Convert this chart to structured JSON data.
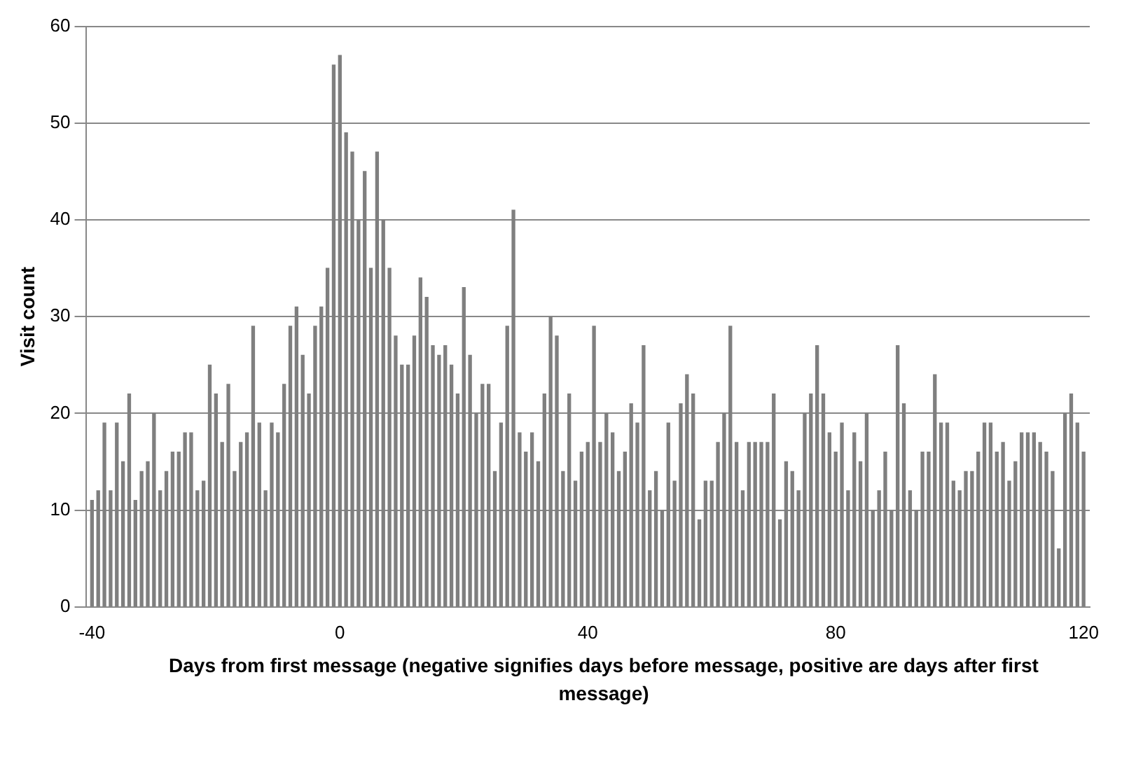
{
  "chart_data": {
    "type": "bar",
    "xlabel": "Days from first message (negative signifies days before message, positive are days after first message)",
    "ylabel": "Visit count",
    "color": "#7f7f7f",
    "xlim": [
      -41,
      121
    ],
    "xticks": [
      -40,
      0,
      40,
      80,
      120
    ],
    "ylim": [
      0,
      60
    ],
    "yticks": [
      0,
      10,
      20,
      30,
      40,
      50,
      60
    ],
    "grid": "y",
    "x": [
      -40,
      -39,
      -38,
      -37,
      -36,
      -35,
      -34,
      -33,
      -32,
      -31,
      -30,
      -29,
      -28,
      -27,
      -26,
      -25,
      -24,
      -23,
      -22,
      -21,
      -20,
      -19,
      -18,
      -17,
      -16,
      -15,
      -14,
      -13,
      -12,
      -11,
      -10,
      -9,
      -8,
      -7,
      -6,
      -5,
      -4,
      -3,
      -2,
      -1,
      0,
      1,
      2,
      3,
      4,
      5,
      6,
      7,
      8,
      9,
      10,
      11,
      12,
      13,
      14,
      15,
      16,
      17,
      18,
      19,
      20,
      21,
      22,
      23,
      24,
      25,
      26,
      27,
      28,
      29,
      30,
      31,
      32,
      33,
      34,
      35,
      36,
      37,
      38,
      39,
      40,
      41,
      42,
      43,
      44,
      45,
      46,
      47,
      48,
      49,
      50,
      51,
      52,
      53,
      54,
      55,
      56,
      57,
      58,
      59,
      60,
      61,
      62,
      63,
      64,
      65,
      66,
      67,
      68,
      69,
      70,
      71,
      72,
      73,
      74,
      75,
      76,
      77,
      78,
      79,
      80,
      81,
      82,
      83,
      84,
      85,
      86,
      87,
      88,
      89,
      90,
      91,
      92,
      93,
      94,
      95,
      96,
      97,
      98,
      99,
      100,
      101,
      102,
      103,
      104,
      105,
      106,
      107,
      108,
      109,
      110,
      111,
      112,
      113,
      114,
      115,
      116,
      117,
      118,
      119,
      120
    ],
    "values": [
      11,
      12,
      19,
      12,
      19,
      15,
      22,
      11,
      14,
      15,
      20,
      12,
      14,
      16,
      16,
      18,
      18,
      12,
      13,
      25,
      22,
      17,
      23,
      14,
      17,
      18,
      29,
      19,
      12,
      19,
      18,
      23,
      29,
      31,
      26,
      22,
      29,
      31,
      35,
      56,
      57,
      49,
      47,
      40,
      45,
      35,
      47,
      40,
      35,
      28,
      25,
      25,
      28,
      34,
      32,
      27,
      26,
      27,
      25,
      22,
      33,
      26,
      20,
      23,
      23,
      14,
      19,
      29,
      41,
      18,
      16,
      18,
      15,
      22,
      30,
      28,
      14,
      22,
      13,
      16,
      17,
      29,
      17,
      20,
      18,
      14,
      16,
      21,
      19,
      27,
      12,
      14,
      10,
      19,
      13,
      21,
      24,
      22,
      9,
      13,
      13,
      17,
      20,
      29,
      17,
      12,
      17,
      17,
      17,
      17,
      22,
      9,
      15,
      14,
      12,
      20,
      22,
      27,
      22,
      18,
      16,
      19,
      12,
      18,
      15,
      20,
      10,
      12,
      16,
      10,
      27,
      21,
      12,
      10,
      16,
      16,
      24,
      19,
      19,
      13,
      12,
      14,
      14,
      16,
      19,
      19,
      16,
      17,
      13,
      15,
      18,
      18,
      18,
      17,
      16,
      14,
      6,
      20,
      22,
      19,
      16
    ]
  }
}
